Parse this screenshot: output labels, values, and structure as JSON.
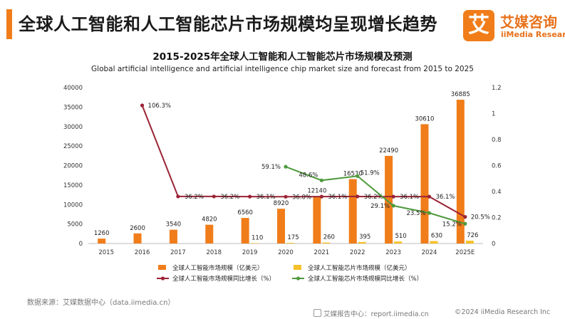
{
  "header": {
    "title": "全球人工智能和人工智能芯片市场规模均呈现增长趋势",
    "logo_char": "艾",
    "logo_cn": "艾媒咨询",
    "logo_en": "iiMedia Research"
  },
  "chart_data": {
    "type": "bar+line",
    "title": "2015-2025年全球人工智能和人工智能芯片市场规模及预测",
    "subtitle": "Global artificial intelligence and artificial intelligence chip market size and forecast from 2015 to 2025",
    "categories": [
      "2015",
      "2016",
      "2017",
      "2018",
      "2019",
      "2020",
      "2021",
      "2022",
      "2023",
      "2024",
      "2025E"
    ],
    "y_left": {
      "min": 0,
      "max": 40000,
      "ticks": [
        "0",
        "5000",
        "10000",
        "15000",
        "20000",
        "25000",
        "30000",
        "35000",
        "40000"
      ]
    },
    "y_right": {
      "min": 0,
      "max": 1.2,
      "ticks": [
        "0",
        "0.2",
        "0.4",
        "0.6",
        "0.8",
        "1",
        "1.2"
      ]
    },
    "grid": false,
    "legend_position": "bottom",
    "series": [
      {
        "name": "全球人工智能市场规模（亿美元）",
        "type": "bar",
        "axis": "left",
        "color": "#f07d1a",
        "values": [
          1260,
          2600,
          3540,
          4820,
          6560,
          8920,
          12140,
          16530,
          22490,
          30610,
          36885
        ],
        "labels": [
          "1260",
          "2600",
          "3540",
          "4820",
          "6560",
          "8920",
          "12140",
          "16530",
          "22490",
          "30610",
          "36885"
        ]
      },
      {
        "name": "全球人工智能芯片市场规模（亿美元）",
        "type": "bar",
        "axis": "left",
        "color": "#f7c02a",
        "values": [
          null,
          null,
          null,
          null,
          110,
          175,
          260,
          395,
          510,
          630,
          726
        ],
        "labels": [
          null,
          null,
          null,
          null,
          "110",
          "175",
          "260",
          "395",
          "510",
          "630",
          "726"
        ]
      },
      {
        "name": "全球人工智能市场规模同比增长（%）",
        "type": "line",
        "axis": "right",
        "color": "#9b2335",
        "values": [
          null,
          1.063,
          0.362,
          0.362,
          0.361,
          0.36,
          0.361,
          0.362,
          0.361,
          0.361,
          0.205
        ],
        "labels": [
          null,
          "106.3%",
          "36.2%",
          "36.2%",
          "36.1%",
          "36.0%",
          "36.1%",
          "36.2%",
          "36.1%",
          "36.1%",
          "20.5%"
        ]
      },
      {
        "name": "全球人工智能芯片市场规模同比增长（%）",
        "type": "line",
        "axis": "right",
        "color": "#4e9a3c",
        "values": [
          null,
          null,
          null,
          null,
          null,
          0.591,
          0.486,
          0.519,
          0.291,
          0.235,
          0.152
        ],
        "labels": [
          null,
          null,
          null,
          null,
          null,
          "59.1%",
          "48.6%",
          "51.9%",
          "29.1%",
          "23.5%",
          "15.2%"
        ]
      }
    ]
  },
  "footer": {
    "source": "数据来源：艾媒数据中心（data.iimedia.cn）",
    "report_center": "艾媒报告中心：report.iimedia.cn",
    "copyright": "©2024  iiMedia Research  Inc"
  }
}
